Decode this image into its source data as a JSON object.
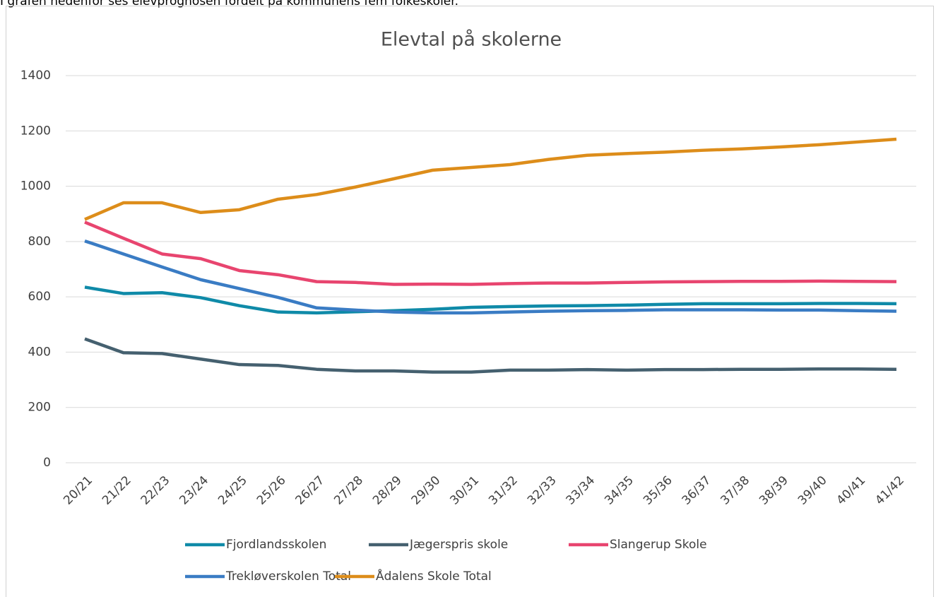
{
  "intro": "I grafen nedenfor ses elevprognosen fordelt på kommunens fem folkeskoler.",
  "chart_data": {
    "type": "line",
    "title": "Elevtal på skolerne",
    "categories": [
      "20/21",
      "21/22",
      "22/23",
      "23/24",
      "24/25",
      "25/26",
      "26/27",
      "27/28",
      "28/29",
      "29/30",
      "30/31",
      "31/32",
      "32/33",
      "33/34",
      "34/35",
      "35/36",
      "36/37",
      "37/38",
      "38/39",
      "39/40",
      "40/41",
      "41/42"
    ],
    "series": [
      {
        "name": "Fjordlandsskolen",
        "color": "#0f8aa8",
        "values": [
          635,
          612,
          615,
          597,
          568,
          545,
          542,
          546,
          550,
          555,
          562,
          565,
          567,
          568,
          570,
          573,
          575,
          575,
          575,
          576,
          576,
          575
        ]
      },
      {
        "name": "Jægerspris skole",
        "color": "#45606f",
        "values": [
          448,
          398,
          395,
          375,
          355,
          352,
          338,
          332,
          332,
          328,
          328,
          335,
          335,
          337,
          335,
          337,
          337,
          338,
          338,
          339,
          339,
          338
        ]
      },
      {
        "name": "Slangerup Skole",
        "color": "#e8456f",
        "values": [
          870,
          812,
          755,
          738,
          695,
          680,
          655,
          652,
          645,
          646,
          645,
          648,
          650,
          650,
          652,
          654,
          655,
          656,
          656,
          657,
          656,
          655
        ]
      },
      {
        "name": "Trekløverskolen Total",
        "color": "#3a7cc4",
        "values": [
          802,
          755,
          708,
          662,
          630,
          598,
          560,
          552,
          545,
          542,
          542,
          545,
          548,
          550,
          551,
          553,
          553,
          553,
          552,
          552,
          550,
          548
        ]
      },
      {
        "name": "Ådalens Skole Total",
        "color": "#dd8d1a",
        "values": [
          880,
          940,
          940,
          905,
          915,
          953,
          970,
          997,
          1027,
          1058,
          1068,
          1078,
          1097,
          1112,
          1118,
          1123,
          1130,
          1135,
          1142,
          1150,
          1160,
          1170
        ]
      }
    ],
    "ylim": [
      0,
      1400
    ],
    "yticks": [
      0,
      200,
      400,
      600,
      800,
      1000,
      1200,
      1400
    ],
    "grid": true,
    "legend": "bottom"
  }
}
